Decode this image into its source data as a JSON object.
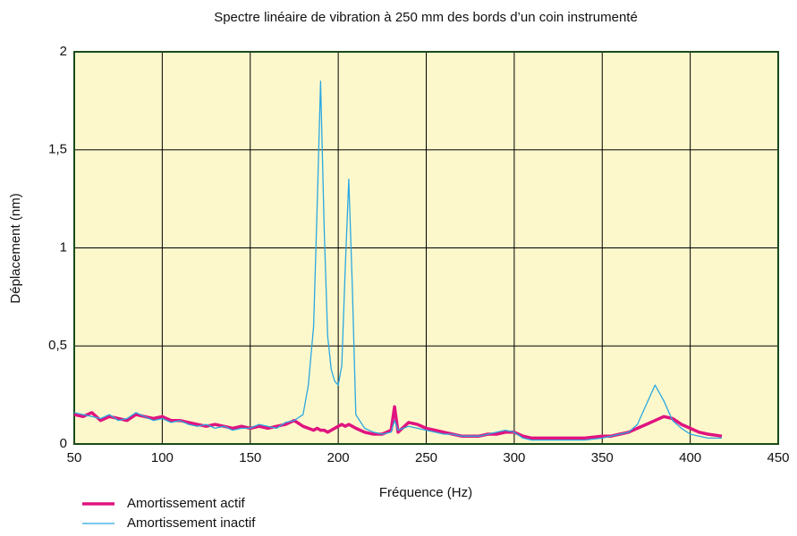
{
  "chart_data": {
    "type": "line",
    "title": "Spectre linéaire de vibration à 250 mm des bords d’un coin instrumenté",
    "x_label": "Fréquence (Hz)",
    "y_label": "Déplacement (nm)",
    "xlim": [
      50,
      450
    ],
    "xticks": [
      50,
      100,
      150,
      200,
      250,
      300,
      350,
      400,
      450
    ],
    "ylim": [
      0,
      2
    ],
    "yticks": [
      0,
      {
        "value": 0.5,
        "label": "0,5"
      },
      1,
      {
        "value": 1.5,
        "label": "1,5"
      },
      2
    ],
    "grid": true,
    "x": [
      50,
      55,
      60,
      65,
      70,
      75,
      80,
      85,
      90,
      95,
      100,
      105,
      110,
      115,
      120,
      125,
      130,
      135,
      140,
      145,
      150,
      155,
      160,
      165,
      170,
      175,
      180,
      183,
      186,
      188,
      190,
      192,
      194,
      196,
      198,
      200,
      202,
      204,
      206,
      208,
      210,
      215,
      220,
      225,
      230,
      232,
      234,
      240,
      245,
      250,
      255,
      260,
      265,
      270,
      275,
      280,
      285,
      290,
      295,
      300,
      305,
      310,
      320,
      330,
      340,
      350,
      355,
      360,
      365,
      370,
      375,
      380,
      385,
      390,
      395,
      400,
      405,
      410,
      418
    ],
    "series": [
      {
        "name": "Amortissement actif",
        "color": "#e0147f",
        "values": [
          0.15,
          0.14,
          0.16,
          0.12,
          0.14,
          0.13,
          0.12,
          0.15,
          0.14,
          0.13,
          0.14,
          0.12,
          0.12,
          0.11,
          0.1,
          0.09,
          0.1,
          0.09,
          0.08,
          0.09,
          0.08,
          0.09,
          0.08,
          0.09,
          0.1,
          0.12,
          0.09,
          0.08,
          0.07,
          0.08,
          0.07,
          0.07,
          0.06,
          0.07,
          0.08,
          0.09,
          0.1,
          0.09,
          0.1,
          0.09,
          0.08,
          0.06,
          0.05,
          0.05,
          0.07,
          0.19,
          0.06,
          0.11,
          0.1,
          0.08,
          0.07,
          0.06,
          0.05,
          0.04,
          0.04,
          0.04,
          0.05,
          0.05,
          0.06,
          0.06,
          0.04,
          0.03,
          0.03,
          0.03,
          0.03,
          0.04,
          0.04,
          0.05,
          0.06,
          0.08,
          0.1,
          0.12,
          0.14,
          0.13,
          0.1,
          0.08,
          0.06,
          0.05,
          0.04
        ]
      },
      {
        "name": "Amortissement inactif",
        "color": "#2aa8e0",
        "values": [
          0.16,
          0.15,
          0.14,
          0.13,
          0.15,
          0.12,
          0.13,
          0.16,
          0.14,
          0.12,
          0.13,
          0.11,
          0.12,
          0.1,
          0.09,
          0.1,
          0.08,
          0.09,
          0.07,
          0.08,
          0.08,
          0.1,
          0.09,
          0.08,
          0.11,
          0.12,
          0.15,
          0.3,
          0.6,
          1.2,
          1.85,
          1.1,
          0.55,
          0.38,
          0.32,
          0.3,
          0.4,
          0.9,
          1.35,
          0.8,
          0.15,
          0.08,
          0.06,
          0.05,
          0.06,
          0.12,
          0.07,
          0.09,
          0.08,
          0.07,
          0.06,
          0.05,
          0.05,
          0.04,
          0.04,
          0.04,
          0.05,
          0.06,
          0.07,
          0.06,
          0.03,
          0.02,
          0.02,
          0.02,
          0.02,
          0.03,
          0.04,
          0.05,
          0.06,
          0.1,
          0.2,
          0.3,
          0.22,
          0.12,
          0.08,
          0.05,
          0.04,
          0.03,
          0.03
        ]
      }
    ]
  }
}
